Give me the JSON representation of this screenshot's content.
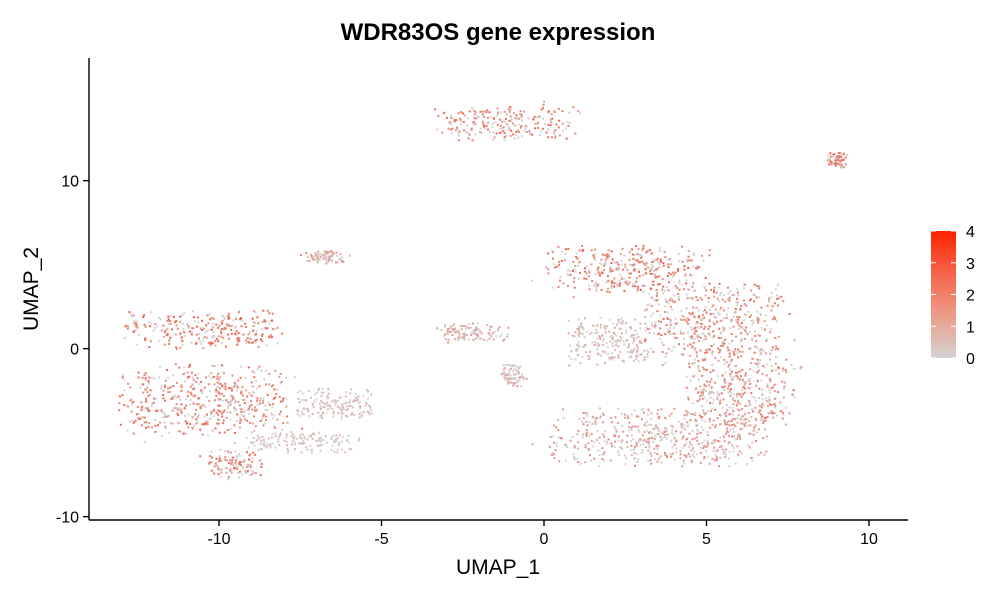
{
  "chart_data": {
    "type": "scatter",
    "title": "WDR83OS gene expression",
    "xlabel": "UMAP_1",
    "ylabel": "UMAP_2",
    "xlim": [
      -14,
      11.2
    ],
    "ylim": [
      -10.2,
      17.3
    ],
    "x_ticks": [
      -10,
      -5,
      0,
      5,
      10
    ],
    "y_ticks": [
      -10,
      0,
      10
    ],
    "x_tick_labels": [
      "-10",
      "-5",
      "0",
      "5",
      "10"
    ],
    "y_tick_labels": [
      "-10",
      "0",
      "10"
    ],
    "grid": false,
    "legend": {
      "placement": "right",
      "type": "colorbar",
      "min": 0,
      "max": 4,
      "ticks": [
        0,
        1,
        2,
        3,
        4
      ],
      "tick_labels": [
        "0",
        "1",
        "2",
        "3",
        "4"
      ],
      "color_low": "#d3d3d3",
      "color_high": "#ff2200"
    },
    "clusters": [
      {
        "center": [
          -1.2,
          13.5
        ],
        "spread": [
          2.3,
          1.1
        ],
        "expression": 1.6
      },
      {
        "center": [
          9.0,
          11.3
        ],
        "spread": [
          0.35,
          0.5
        ],
        "expression": 1.8
      },
      {
        "center": [
          -10.5,
          1.2
        ],
        "spread": [
          2.6,
          1.2
        ],
        "expression": 1.9
      },
      {
        "center": [
          -10.5,
          -3.0
        ],
        "spread": [
          2.8,
          2.3
        ],
        "expression": 1.7
      },
      {
        "center": [
          -9.5,
          -6.8
        ],
        "spread": [
          0.9,
          0.9
        ],
        "expression": 1.6
      },
      {
        "center": [
          -6.5,
          -3.2
        ],
        "spread": [
          1.3,
          1.0
        ],
        "expression": 0.4
      },
      {
        "center": [
          -7.5,
          -5.5
        ],
        "spread": [
          1.8,
          0.7
        ],
        "expression": 0.3
      },
      {
        "center": [
          -6.8,
          5.5
        ],
        "spread": [
          0.7,
          0.4
        ],
        "expression": 0.9
      },
      {
        "center": [
          -2.2,
          1.0
        ],
        "spread": [
          1.2,
          0.6
        ],
        "expression": 0.8
      },
      {
        "center": [
          -1.0,
          -1.5
        ],
        "spread": [
          0.4,
          0.8
        ],
        "expression": 0.5
      },
      {
        "center": [
          2.6,
          4.8
        ],
        "spread": [
          2.7,
          1.5
        ],
        "expression": 1.8
      },
      {
        "center": [
          5.2,
          1.5
        ],
        "spread": [
          2.3,
          2.6
        ],
        "expression": 1.5
      },
      {
        "center": [
          2.0,
          0.5
        ],
        "spread": [
          1.4,
          1.6
        ],
        "expression": 0.5
      },
      {
        "center": [
          3.5,
          -5.2
        ],
        "spread": [
          3.6,
          1.9
        ],
        "expression": 1.0
      },
      {
        "center": [
          6.0,
          -2.5
        ],
        "spread": [
          1.8,
          2.2
        ],
        "expression": 1.3
      }
    ]
  }
}
